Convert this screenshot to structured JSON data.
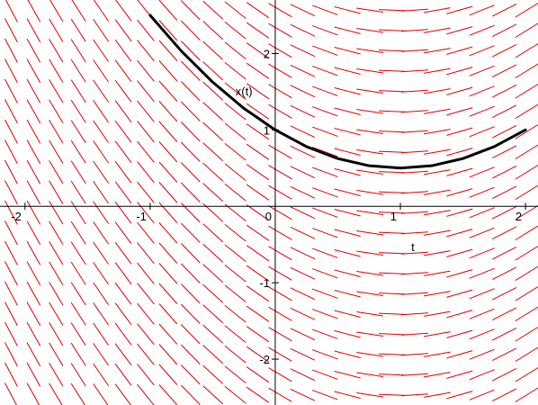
{
  "chart_data": {
    "type": "line",
    "subtype": "direction-field",
    "title": "",
    "xlabel": "t",
    "ylabel": "x(t)",
    "xlim": [
      -2.2,
      2.1
    ],
    "ylim": [
      -2.6,
      2.7
    ],
    "x_ticks": [
      -2,
      -1,
      0,
      1,
      2
    ],
    "y_ticks": [
      -2,
      -1,
      1,
      2
    ],
    "x_tick_labels": [
      "-2",
      "-1",
      "0",
      "1",
      "2"
    ],
    "y_tick_labels": [
      "-2",
      "-1",
      "1",
      "2"
    ],
    "grid": false,
    "direction_field": {
      "equation": "dx/dt = t - 1",
      "t_samples": 24,
      "x_samples": 20,
      "color": "#dd0000"
    },
    "series": [
      {
        "equation": "x(t) = t^2/2 - t + 1",
        "color": "#000000",
        "x": [
          -1.0,
          -0.75,
          -0.5,
          -0.25,
          0.0,
          0.25,
          0.5,
          0.75,
          1.0,
          1.25,
          1.5,
          1.75,
          2.0
        ],
        "y": [
          2.5,
          2.031,
          1.625,
          1.281,
          1.0,
          0.781,
          0.625,
          0.531,
          0.5,
          0.531,
          0.625,
          0.781,
          1.0
        ]
      }
    ]
  }
}
